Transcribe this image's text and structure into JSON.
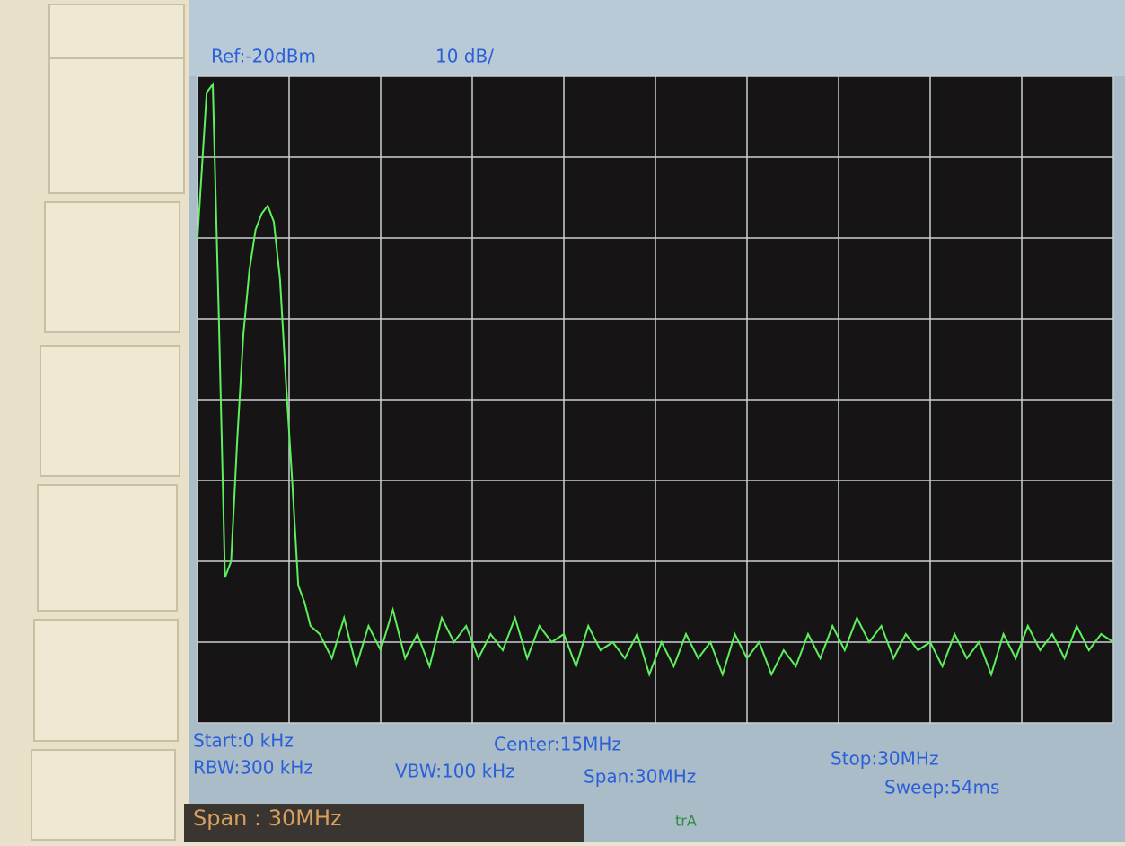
{
  "chart_data": {
    "type": "line",
    "ref_level": "Ref:-20dBm",
    "scale": "10 dB/",
    "start": "Start:0 kHz",
    "rbw": "RBW:300 kHz",
    "center": "Center:15MHz",
    "vbw": "VBW:100 kHz",
    "span": "Span:30MHz",
    "stop": "Stop:30MHz",
    "sweep": "Sweep:54ms",
    "color": "#5cf05c",
    "grid": true,
    "xlim": [
      0,
      30
    ],
    "ylim": [
      -100,
      -20
    ],
    "xticks": [
      0,
      3,
      6,
      9,
      12,
      15,
      18,
      21,
      24,
      27,
      30
    ],
    "yticks": [
      -100,
      -90,
      -80,
      -70,
      -60,
      -50,
      -40,
      -30,
      -20
    ],
    "x": [
      0,
      0.3,
      0.5,
      0.7,
      0.9,
      1.1,
      1.3,
      1.5,
      1.7,
      1.9,
      2.1,
      2.3,
      2.5,
      2.7,
      2.9,
      3.1,
      3.3,
      3.5,
      3.7,
      4.0,
      4.4,
      4.8,
      5.2,
      5.6,
      6.0,
      6.4,
      6.8,
      7.2,
      7.6,
      8.0,
      8.4,
      8.8,
      9.2,
      9.6,
      10.0,
      10.4,
      10.8,
      11.2,
      11.6,
      12.0,
      12.4,
      12.8,
      13.2,
      13.6,
      14.0,
      14.4,
      14.8,
      15.2,
      15.6,
      16.0,
      16.4,
      16.8,
      17.2,
      17.6,
      18.0,
      18.4,
      18.8,
      19.2,
      19.6,
      20.0,
      20.4,
      20.8,
      21.2,
      21.6,
      22.0,
      22.4,
      22.8,
      23.2,
      23.6,
      24.0,
      24.4,
      24.8,
      25.2,
      25.6,
      26.0,
      26.4,
      26.8,
      27.2,
      27.6,
      28.0,
      28.4,
      28.8,
      29.2,
      29.6,
      30.0
    ],
    "values": [
      -40,
      -22,
      -21,
      -50,
      -82,
      -80,
      -65,
      -52,
      -44,
      -39,
      -37,
      -36,
      -38,
      -45,
      -58,
      -70,
      -83,
      -85,
      -88,
      -89,
      -92,
      -87,
      -93,
      -88,
      -91,
      -86,
      -92,
      -89,
      -93,
      -87,
      -90,
      -88,
      -92,
      -89,
      -91,
      -87,
      -92,
      -88,
      -90,
      -89,
      -93,
      -88,
      -91,
      -90,
      -92,
      -89,
      -94,
      -90,
      -93,
      -89,
      -92,
      -90,
      -94,
      -89,
      -92,
      -90,
      -94,
      -91,
      -93,
      -89,
      -92,
      -88,
      -91,
      -87,
      -90,
      -88,
      -92,
      -89,
      -91,
      -90,
      -93,
      -89,
      -92,
      -90,
      -94,
      -89,
      -92,
      -88,
      -91,
      -89,
      -92,
      -88,
      -91,
      -89,
      -90
    ]
  },
  "status_bar": {
    "text": "Span : 30MHz",
    "trace": "trA"
  }
}
